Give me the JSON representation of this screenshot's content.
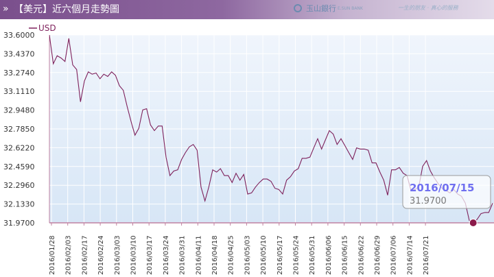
{
  "header": {
    "chevron": "»",
    "title": "【美元】近六個月走勢圖",
    "brand": "玉山銀行",
    "brand_en": "E.SUN BANK",
    "slogan": "一生的朋友 · 真心的服務"
  },
  "colors": {
    "line": "#7d1f5a",
    "plot_top": "#f0f5fc",
    "plot_bottom": "#d7e6f6",
    "grid": "#ffffff",
    "marker": "#8b1a4a",
    "tooltip_date": "#6f6ff0",
    "tooltip_value": "#777777"
  },
  "icons": {
    "header_chevron": "double-chevron-right-icon",
    "brand_logo": "esun-logo-icon"
  },
  "tooltip": {
    "date": "2016/07/15",
    "value": "31.9700"
  },
  "chart_data": {
    "type": "line",
    "title": "",
    "xlabel": "",
    "ylabel": "",
    "ylim": [
      31.97,
      33.6
    ],
    "grid": true,
    "legend": "top-left",
    "yticks": [
      "33.6000",
      "33.4370",
      "33.2740",
      "33.1110",
      "32.9480",
      "32.7850",
      "32.6220",
      "32.4590",
      "32.2960",
      "32.1330",
      "31.9700"
    ],
    "xticks": [
      "2016/01/28",
      "2016/02/03",
      "2016/02/17",
      "2016/02/24",
      "2016/03/03",
      "2016/03/10",
      "2016/03/17",
      "2016/03/24",
      "2016/03/31",
      "2016/04/11",
      "2016/04/18",
      "2016/04/25",
      "2016/05/03",
      "2016/05/10",
      "2016/05/17",
      "2016/05/24",
      "2016/05/31",
      "2016/06/06",
      "2016/06/15",
      "2016/06/22",
      "2016/06/29",
      "2016/07/06",
      "2016/07/14",
      "2016/07/21"
    ],
    "series": [
      {
        "name": "USD",
        "values": [
          33.6,
          33.35,
          33.42,
          33.4,
          33.37,
          33.57,
          33.34,
          33.3,
          33.02,
          33.2,
          33.28,
          33.26,
          33.27,
          33.22,
          33.26,
          33.24,
          33.28,
          33.25,
          33.16,
          33.12,
          32.98,
          32.85,
          32.73,
          32.79,
          32.95,
          32.96,
          32.82,
          32.77,
          32.81,
          32.81,
          32.54,
          32.38,
          32.42,
          32.43,
          32.52,
          32.58,
          32.63,
          32.65,
          32.6,
          32.28,
          32.16,
          32.28,
          32.43,
          32.41,
          32.44,
          32.38,
          32.38,
          32.32,
          32.4,
          32.34,
          32.39,
          32.22,
          32.23,
          32.28,
          32.32,
          32.35,
          32.35,
          32.33,
          32.27,
          32.26,
          32.22,
          32.34,
          32.37,
          32.42,
          32.44,
          32.53,
          32.53,
          32.54,
          32.62,
          32.7,
          32.61,
          32.69,
          32.77,
          32.74,
          32.65,
          32.7,
          32.64,
          32.58,
          32.52,
          32.62,
          32.61,
          32.61,
          32.6,
          32.49,
          32.49,
          32.41,
          32.34,
          32.21,
          32.43,
          32.43,
          32.45,
          32.4,
          32.38,
          32.25,
          32.26,
          32.28,
          32.46,
          32.51,
          32.42,
          32.36,
          32.31,
          32.27,
          32.25,
          32.23,
          32.26,
          32.22,
          32.2,
          32.14,
          31.99,
          31.97,
          32.0,
          32.05,
          32.06,
          32.06,
          32.14
        ]
      }
    ]
  }
}
